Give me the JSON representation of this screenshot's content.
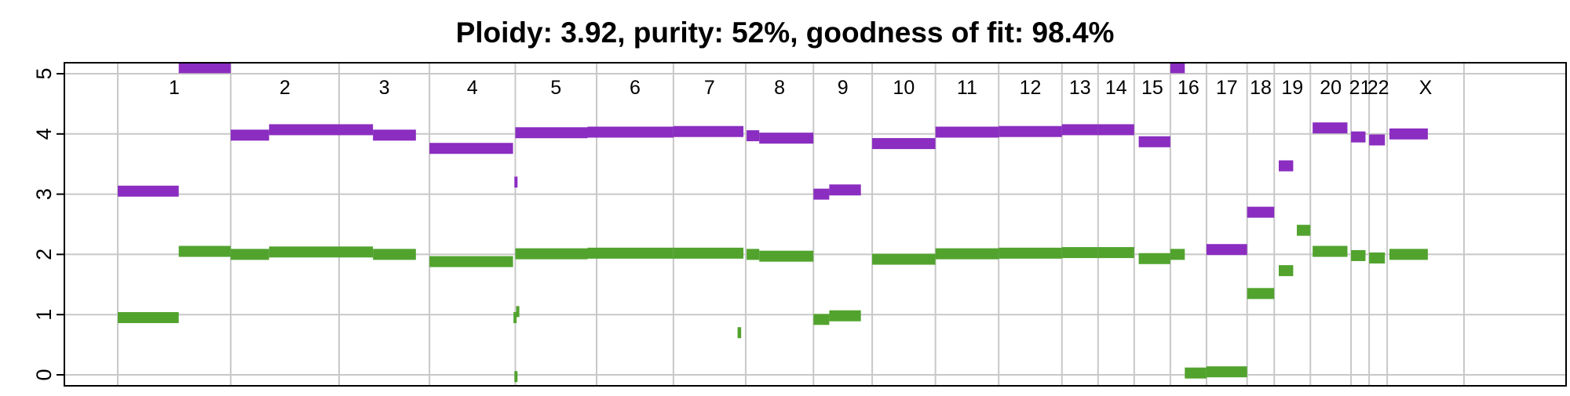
{
  "chart_data": {
    "type": "segment",
    "title": "Ploidy: 3.92, purity: 52%, goodness of fit: 98.4%",
    "xlabel": "",
    "ylabel": "",
    "ylim": [
      0,
      5
    ],
    "yticks": [
      "0",
      "1",
      "2",
      "3",
      "4",
      "5"
    ],
    "xlim": [
      0,
      3100
    ],
    "grid": true,
    "legend": "none",
    "colors": {
      "total_copy_number": "#8a2dc0",
      "minor_copy_number": "#52a32e",
      "grid": "#c8c8c8",
      "axis": "#000000"
    },
    "chromosomes": [
      {
        "name": "1",
        "start": 0,
        "end": 250
      },
      {
        "name": "2",
        "start": 250,
        "end": 490
      },
      {
        "name": "3",
        "start": 490,
        "end": 690
      },
      {
        "name": "4",
        "start": 690,
        "end": 880
      },
      {
        "name": "5",
        "start": 880,
        "end": 1060
      },
      {
        "name": "6",
        "start": 1060,
        "end": 1230
      },
      {
        "name": "7",
        "start": 1230,
        "end": 1390
      },
      {
        "name": "8",
        "start": 1390,
        "end": 1540
      },
      {
        "name": "9",
        "start": 1540,
        "end": 1670
      },
      {
        "name": "10",
        "start": 1670,
        "end": 1810
      },
      {
        "name": "11",
        "start": 1810,
        "end": 1950
      },
      {
        "name": "12",
        "start": 1950,
        "end": 2090
      },
      {
        "name": "13",
        "start": 2090,
        "end": 2170
      },
      {
        "name": "14",
        "start": 2170,
        "end": 2250
      },
      {
        "name": "15",
        "start": 2250,
        "end": 2330
      },
      {
        "name": "16",
        "start": 2330,
        "end": 2410
      },
      {
        "name": "17",
        "start": 2410,
        "end": 2500
      },
      {
        "name": "18",
        "start": 2500,
        "end": 2560
      },
      {
        "name": "19",
        "start": 2560,
        "end": 2640
      },
      {
        "name": "20",
        "start": 2640,
        "end": 2730
      },
      {
        "name": "21",
        "start": 2730,
        "end": 2770
      },
      {
        "name": "22",
        "start": 2770,
        "end": 2810
      },
      {
        "name": "X",
        "start": 2810,
        "end": 2980
      }
    ],
    "series": [
      {
        "key": "total_copy_number",
        "segments": [
          {
            "x": [
              0,
              135
            ],
            "y": 3.05
          },
          {
            "x": [
              135,
              250
            ],
            "y": 5.1
          },
          {
            "x": [
              250,
              335
            ],
            "y": 3.98
          },
          {
            "x": [
              335,
              490
            ],
            "y": 4.07
          },
          {
            "x": [
              490,
              565
            ],
            "y": 4.07
          },
          {
            "x": [
              565,
              660
            ],
            "y": 3.98
          },
          {
            "x": [
              690,
              875
            ],
            "y": 3.76
          },
          {
            "x": [
              878,
              882
            ],
            "y": 3.2
          },
          {
            "x": [
              880,
              1040
            ],
            "y": 4.02
          },
          {
            "x": [
              1040,
              1230
            ],
            "y": 4.03
          },
          {
            "x": [
              1230,
              1385
            ],
            "y": 4.04
          },
          {
            "x": [
              1392,
              1420
            ],
            "y": 3.97
          },
          {
            "x": [
              1420,
              1540
            ],
            "y": 3.93
          },
          {
            "x": [
              1540,
              1575
            ],
            "y": 3.0
          },
          {
            "x": [
              1575,
              1645
            ],
            "y": 3.07
          },
          {
            "x": [
              1670,
              1810
            ],
            "y": 3.84
          },
          {
            "x": [
              1810,
              1950
            ],
            "y": 4.03
          },
          {
            "x": [
              1950,
              2090
            ],
            "y": 4.04
          },
          {
            "x": [
              2090,
              2170
            ],
            "y": 4.07
          },
          {
            "x": [
              2170,
              2250
            ],
            "y": 4.07
          },
          {
            "x": [
              2260,
              2330
            ],
            "y": 3.87
          },
          {
            "x": [
              2330,
              2362
            ],
            "y": 5.1
          },
          {
            "x": [
              2410,
              2500
            ],
            "y": 2.08
          },
          {
            "x": [
              2500,
              2560
            ],
            "y": 2.7
          },
          {
            "x": [
              2570,
              2602
            ],
            "y": 3.47
          },
          {
            "x": [
              2645,
              2722
            ],
            "y": 4.1
          },
          {
            "x": [
              2730,
              2762
            ],
            "y": 3.95
          },
          {
            "x": [
              2770,
              2805
            ],
            "y": 3.9
          },
          {
            "x": [
              2815,
              2900
            ],
            "y": 4.0
          }
        ]
      },
      {
        "key": "minor_copy_number",
        "segments": [
          {
            "x": [
              0,
              135
            ],
            "y": 0.95
          },
          {
            "x": [
              135,
              250
            ],
            "y": 2.05
          },
          {
            "x": [
              250,
              335
            ],
            "y": 2.0
          },
          {
            "x": [
              335,
              490
            ],
            "y": 2.04
          },
          {
            "x": [
              490,
              565
            ],
            "y": 2.04
          },
          {
            "x": [
              565,
              660
            ],
            "y": 2.0
          },
          {
            "x": [
              690,
              875
            ],
            "y": 1.88
          },
          {
            "x": [
              876,
              880
            ],
            "y": 0.95
          },
          {
            "x": [
              882,
              886
            ],
            "y": 1.05
          },
          {
            "x": [
              878,
              882
            ],
            "y": -0.03
          },
          {
            "x": [
              880,
              1040
            ],
            "y": 2.01
          },
          {
            "x": [
              1040,
              1230
            ],
            "y": 2.02
          },
          {
            "x": [
              1230,
              1385
            ],
            "y": 2.02
          },
          {
            "x": [
              1372,
              1380
            ],
            "y": 0.7
          },
          {
            "x": [
              1392,
              1420
            ],
            "y": 2.0
          },
          {
            "x": [
              1420,
              1540
            ],
            "y": 1.97
          },
          {
            "x": [
              1540,
              1575
            ],
            "y": 0.92
          },
          {
            "x": [
              1575,
              1645
            ],
            "y": 0.98
          },
          {
            "x": [
              1670,
              1810
            ],
            "y": 1.92
          },
          {
            "x": [
              1810,
              1950
            ],
            "y": 2.01
          },
          {
            "x": [
              1950,
              2090
            ],
            "y": 2.02
          },
          {
            "x": [
              2090,
              2170
            ],
            "y": 2.03
          },
          {
            "x": [
              2170,
              2250
            ],
            "y": 2.03
          },
          {
            "x": [
              2260,
              2330
            ],
            "y": 1.93
          },
          {
            "x": [
              2330,
              2362
            ],
            "y": 2.0
          },
          {
            "x": [
              2362,
              2410
            ],
            "y": 0.03
          },
          {
            "x": [
              2410,
              2500
            ],
            "y": 0.05
          },
          {
            "x": [
              2500,
              2560
            ],
            "y": 1.35
          },
          {
            "x": [
              2570,
              2602
            ],
            "y": 1.73
          },
          {
            "x": [
              2610,
              2640
            ],
            "y": 2.4
          },
          {
            "x": [
              2645,
              2722
            ],
            "y": 2.05
          },
          {
            "x": [
              2730,
              2762
            ],
            "y": 1.98
          },
          {
            "x": [
              2770,
              2805
            ],
            "y": 1.94
          },
          {
            "x": [
              2815,
              2900
            ],
            "y": 2.0
          }
        ]
      }
    ]
  }
}
